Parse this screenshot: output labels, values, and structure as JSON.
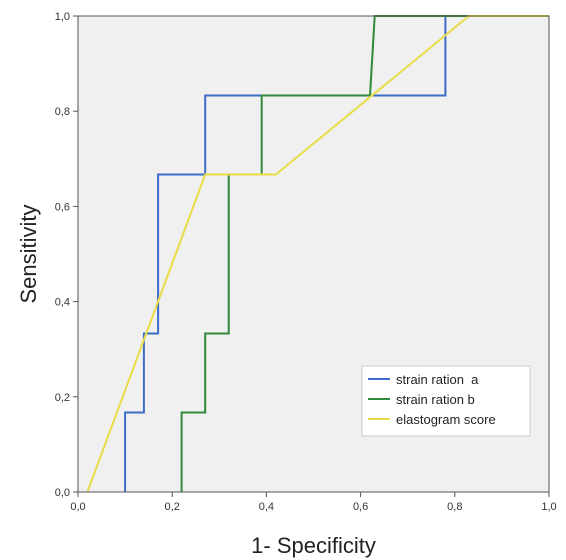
{
  "chart_data": {
    "type": "line",
    "xlabel": "1- Specificity",
    "ylabel": "Sensitivity",
    "xlim": [
      0,
      1
    ],
    "ylim": [
      0,
      1
    ],
    "x_ticks": [
      "0,0",
      "0,2",
      "0,4",
      "0,6",
      "0,8",
      "1,0"
    ],
    "y_ticks": [
      "0,0",
      "0,2",
      "0,4",
      "0,6",
      "0,8",
      "1,0"
    ],
    "grid": false,
    "legend_position": "bottom-right",
    "background": "#f0f0f0",
    "series": [
      {
        "name": "strain ration  a",
        "color": "#3c6cc8",
        "x": [
          0.1,
          0.1,
          0.1,
          0.1,
          0.14,
          0.14,
          0.17,
          0.17,
          0.27,
          0.27,
          0.78,
          0.78,
          1.0
        ],
        "y": [
          0.0,
          0.0,
          0.167,
          0.167,
          0.167,
          0.333,
          0.333,
          0.667,
          0.667,
          0.833,
          0.833,
          1.0,
          1.0
        ]
      },
      {
        "name": "strain ration b",
        "color": "#2f8a3c",
        "x": [
          0.22,
          0.22,
          0.27,
          0.27,
          0.32,
          0.32,
          0.39,
          0.39,
          0.62,
          0.63,
          1.0
        ],
        "y": [
          0.0,
          0.167,
          0.167,
          0.333,
          0.333,
          0.667,
          0.667,
          0.833,
          0.833,
          1.0,
          1.0
        ]
      },
      {
        "name": "elastogram score",
        "color": "#e8dc48",
        "x": [
          0.02,
          0.27,
          0.42,
          0.83,
          1.0
        ],
        "y": [
          0.0,
          0.667,
          0.667,
          1.0,
          1.0
        ]
      }
    ]
  }
}
